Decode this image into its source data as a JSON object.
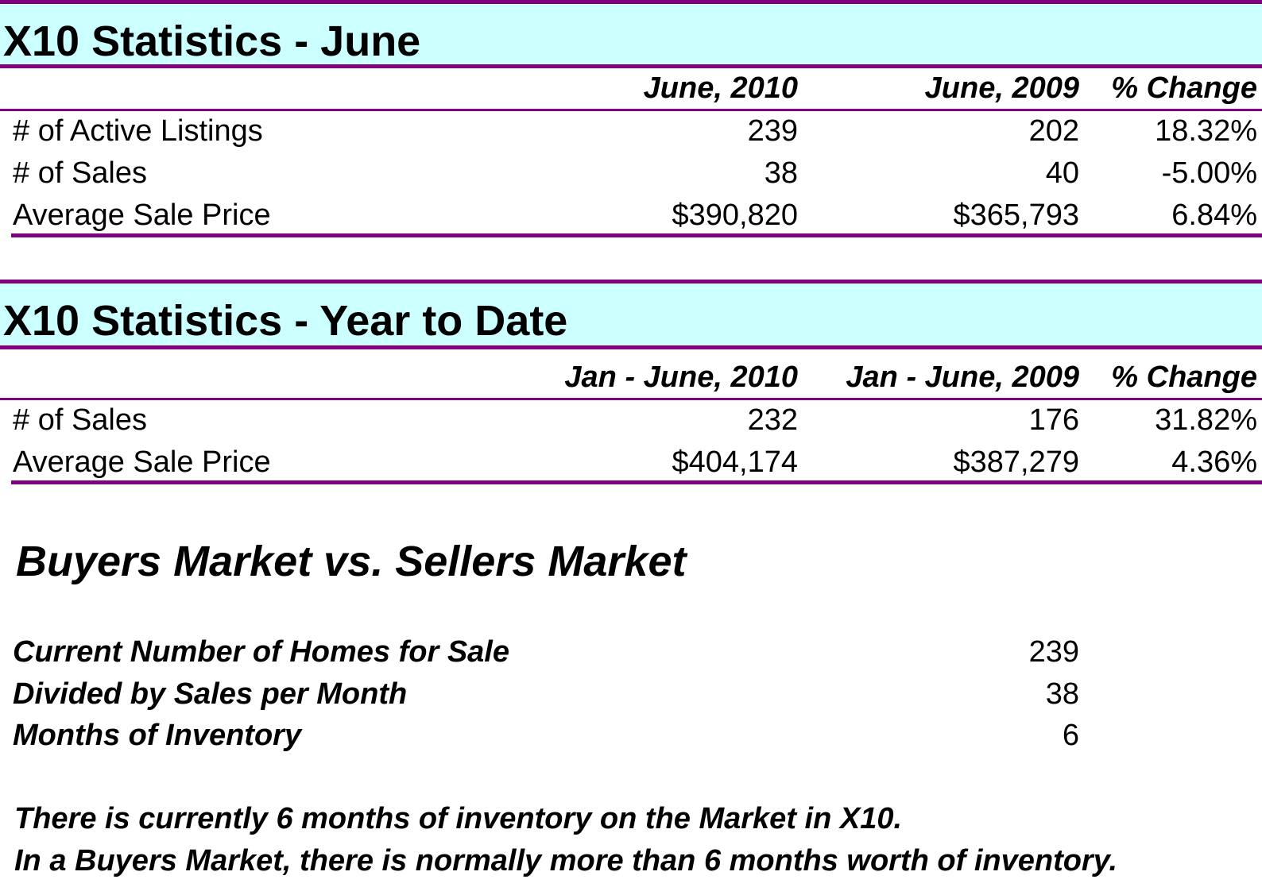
{
  "monthly": {
    "title": "X10 Statistics - June",
    "headers": [
      "June, 2010",
      "June, 2009",
      "% Change"
    ],
    "rows": [
      {
        "label": "# of Active Listings",
        "current": "239",
        "previous": "202",
        "change": "18.32%"
      },
      {
        "label": "# of Sales",
        "current": "38",
        "previous": "40",
        "change": "-5.00%"
      },
      {
        "label": "Average Sale Price",
        "current": "$390,820",
        "previous": "$365,793",
        "change": "6.84%"
      }
    ]
  },
  "ytd": {
    "title": "X10 Statistics - Year to Date",
    "headers": [
      "Jan - June, 2010",
      "Jan - June, 2009",
      "% Change"
    ],
    "rows": [
      {
        "label": "# of Sales",
        "current": "232",
        "previous": "176",
        "change": "31.82%"
      },
      {
        "label": "Average Sale Price",
        "current": "$404,174",
        "previous": "$387,279",
        "change": "4.36%"
      }
    ]
  },
  "market": {
    "title": "Buyers Market vs. Sellers Market",
    "rows": [
      {
        "label": "Current Number of Homes for Sale",
        "value": "239"
      },
      {
        "label": "Divided by Sales per Month",
        "value": "38"
      },
      {
        "label": "Months of Inventory",
        "value": "6"
      }
    ],
    "notes": [
      "There is currently 6 months of inventory on the Market in X10.",
      "In a Buyers Market, there is normally more than 6 months worth of inventory."
    ]
  },
  "colors": {
    "banner_bg": "#ccffff",
    "rule": "#800080"
  }
}
